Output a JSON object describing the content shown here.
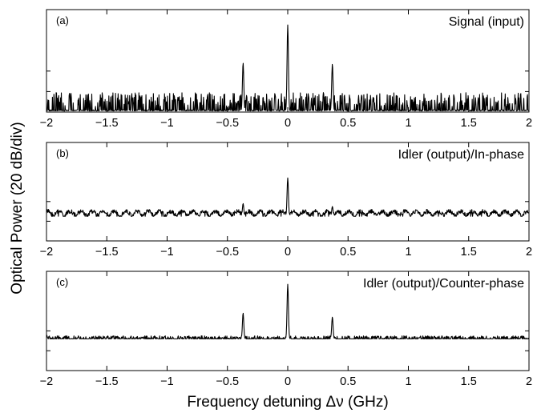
{
  "figure": {
    "xlabel": "Frequency detuning Δν (GHz)",
    "ylabel": "Optical Power (20 dB/div)"
  },
  "chart_data": [
    {
      "type": "line",
      "panel_label": "(a)",
      "title": "Signal (input)",
      "xlim": [
        -2,
        2
      ],
      "ylim": [
        0,
        5
      ],
      "yaxis_unit": "20 dB/div",
      "xticks": [
        -2,
        -1.5,
        -1,
        -0.5,
        0,
        0.5,
        1,
        1.5,
        2
      ],
      "xtick_labels": [
        "−2",
        "−1.5",
        "−1",
        "−0.5",
        "0",
        "0.5",
        "1",
        "1.5",
        "2"
      ],
      "yticks": [
        1,
        2
      ],
      "grid": false,
      "series": [
        {
          "baseline": 0.05,
          "noise": {
            "amplitude": 0.9,
            "style": "sparse-spikes"
          },
          "x": [
            -0.37,
            0.0,
            0.37
          ],
          "y": [
            2.4,
            4.25,
            2.35
          ],
          "peak_width": 0.008
        }
      ]
    },
    {
      "type": "line",
      "panel_label": "(b)",
      "title": "Idler (output)/In-phase",
      "xlim": [
        -2,
        2
      ],
      "ylim": [
        0,
        5
      ],
      "yaxis_unit": "20 dB/div",
      "xticks": [
        -2,
        -1.5,
        -1,
        -0.5,
        0,
        0.5,
        1,
        1.5,
        2
      ],
      "xtick_labels": [
        "−2",
        "−1.5",
        "−1",
        "−0.5",
        "0",
        "0.5",
        "1",
        "1.5",
        "2"
      ],
      "yticks": [
        1,
        2
      ],
      "grid": false,
      "series": [
        {
          "baseline": 1.25,
          "noise": {
            "amplitude": 0.25,
            "style": "periodic-ripple",
            "period": 0.185
          },
          "x": [
            -0.37,
            0.0,
            0.37
          ],
          "y": [
            1.9,
            3.2,
            1.75
          ],
          "peak_width": 0.008
        }
      ]
    },
    {
      "type": "line",
      "panel_label": "(c)",
      "title": "Idler (output)/Counter-phase",
      "xlim": [
        -2,
        2
      ],
      "ylim": [
        0,
        5
      ],
      "yaxis_unit": "20 dB/div",
      "xticks": [
        -2,
        -1.5,
        -1,
        -0.5,
        0,
        0.5,
        1,
        1.5,
        2
      ],
      "xtick_labels": [
        "−2",
        "−1.5",
        "−1",
        "−0.5",
        "0",
        "0.5",
        "1",
        "1.5",
        "2"
      ],
      "yticks": [
        1,
        2
      ],
      "grid": false,
      "series": [
        {
          "baseline": 1.6,
          "noise": {
            "amplitude": 0.15,
            "style": "dense-fine"
          },
          "x": [
            -2.0,
            -0.37,
            0.0,
            0.37
          ],
          "y": [
            1.8,
            2.9,
            4.35,
            2.7
          ],
          "peak_width": 0.008
        }
      ]
    }
  ]
}
